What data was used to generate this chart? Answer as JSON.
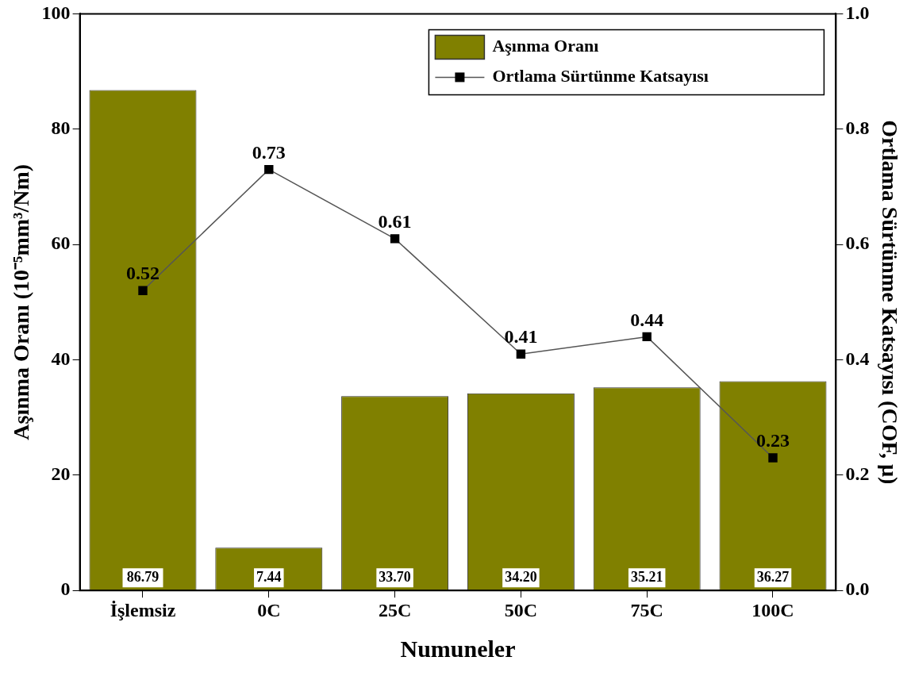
{
  "chart_data": {
    "type": "bar",
    "xlabel": "Numuneler",
    "ylabel": "Aşınma Oranı (10⁻⁵mm³/Nm)",
    "y2label": "Ortlama Sürtünme Katsayısı (COF, µ)",
    "categories": [
      "İşlemsiz",
      "0C",
      "25C",
      "50C",
      "75C",
      "100C"
    ],
    "series": [
      {
        "name": "Aşınma Oranı",
        "color": "#808000",
        "values": [
          86.79,
          7.44,
          33.7,
          34.2,
          35.21,
          36.27
        ],
        "value_labels": [
          "86.79",
          "7.44",
          "33.70",
          "34.20",
          "35.21",
          "36.27"
        ]
      },
      {
        "name": "Ortlama Sürtünme Katsayısı",
        "type": "line",
        "axis": "y2",
        "color": "#000000",
        "values": [
          0.52,
          0.73,
          0.61,
          0.41,
          0.44,
          0.23
        ],
        "value_labels": [
          "0.52",
          "0.73",
          "0.61",
          "0.41",
          "0.44",
          "0.23"
        ]
      }
    ],
    "ylim": [
      0,
      100
    ],
    "yticks": [
      0,
      20,
      40,
      60,
      80,
      100
    ],
    "y2lim": [
      0,
      1
    ],
    "y2ticks": [
      {
        "value": 0,
        "label": "0.0"
      },
      {
        "value": 0.2,
        "label": "0.2"
      },
      {
        "value": 0.4,
        "label": "0.4"
      },
      {
        "value": 0.6,
        "label": "0.6"
      },
      {
        "value": 0.8,
        "label": "0.8"
      },
      {
        "value": 1,
        "label": "1.0"
      }
    ],
    "grid": false,
    "legend": "top right",
    "marker": "square",
    "line_style": "solid"
  }
}
